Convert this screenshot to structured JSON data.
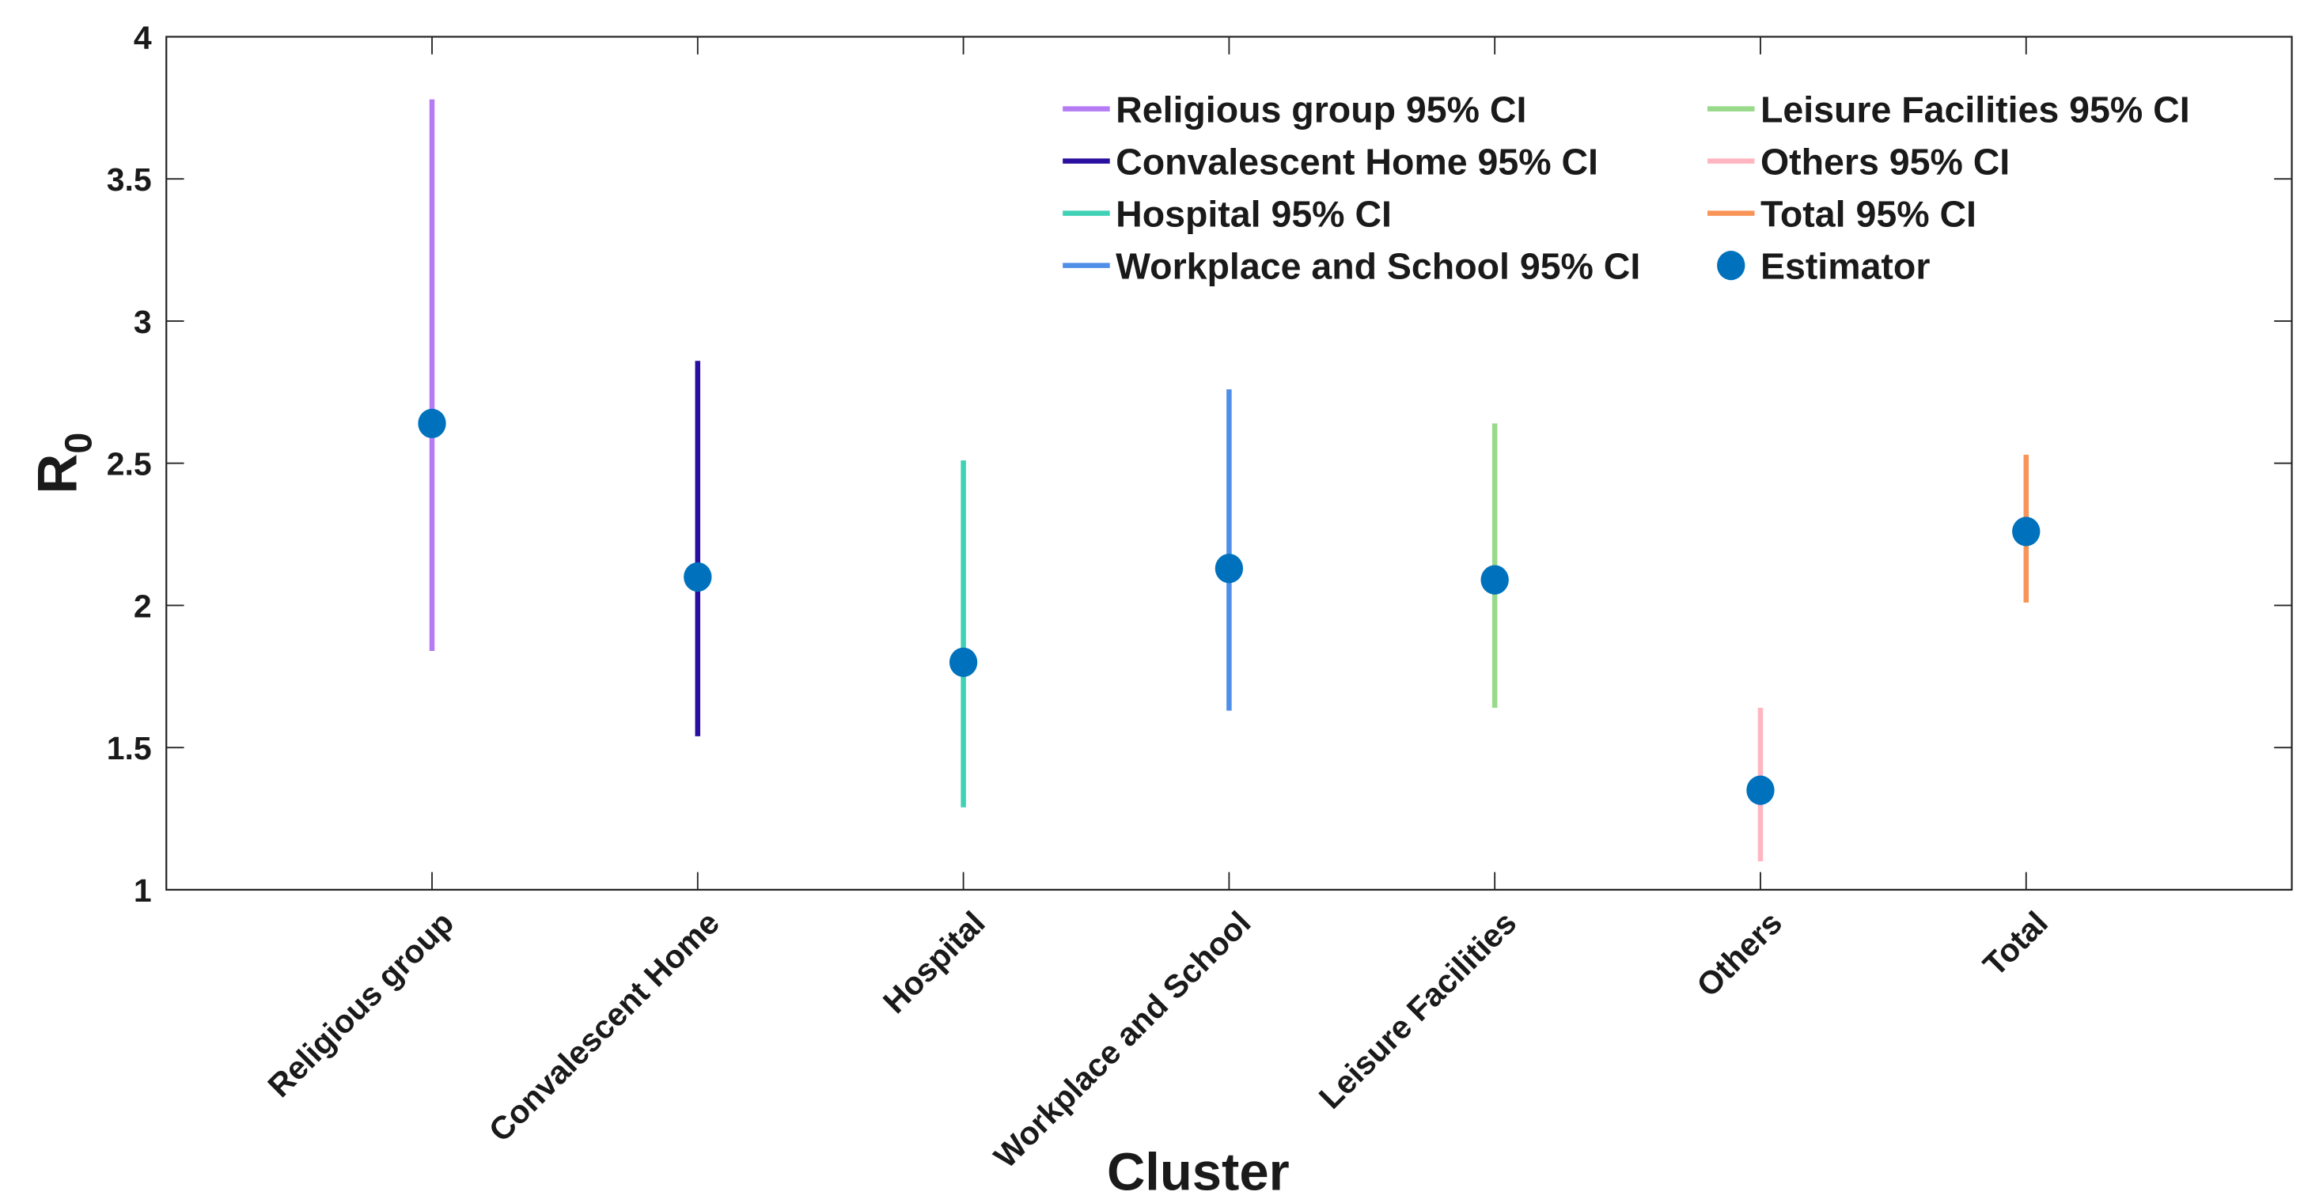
{
  "chart_data": {
    "type": "scatter",
    "subtype": "point-estimate-with-confidence-intervals",
    "title": "",
    "xlabel": "Cluster",
    "ylabel": "R",
    "ylabel_subscript": "0",
    "xlim": [
      0,
      8
    ],
    "ylim": [
      1,
      4
    ],
    "yticks": [
      1,
      1.5,
      2,
      2.5,
      3,
      3.5,
      4
    ],
    "ytick_labels": [
      "1",
      "1.5",
      "2",
      "2.5",
      "3",
      "3.5",
      "4"
    ],
    "grid": false,
    "legend_placement": "top-right",
    "categories": [
      "Religious group",
      "Convalescent Home",
      "Hospital",
      "Workplace and School",
      "Leisure Facilities",
      "Others",
      "Total"
    ],
    "series": [
      {
        "name": "Religious group 95% CI",
        "x": 1,
        "estimate": 2.64,
        "ci_low": 1.84,
        "ci_high": 3.78,
        "color": "#b57bf5"
      },
      {
        "name": "Convalescent Home 95% CI",
        "x": 2,
        "estimate": 2.1,
        "ci_low": 1.54,
        "ci_high": 2.86,
        "color": "#2a0ea0"
      },
      {
        "name": "Hospital 95% CI",
        "x": 3,
        "estimate": 1.8,
        "ci_low": 1.29,
        "ci_high": 2.51,
        "color": "#3fd1b5"
      },
      {
        "name": "Workplace and School 95% CI",
        "x": 4,
        "estimate": 2.13,
        "ci_low": 1.63,
        "ci_high": 2.76,
        "color": "#4f8fe8"
      },
      {
        "name": "Leisure Facilities 95% CI",
        "x": 5,
        "estimate": 2.09,
        "ci_low": 1.64,
        "ci_high": 2.64,
        "color": "#98d98a"
      },
      {
        "name": "Others 95% CI",
        "x": 6,
        "estimate": 1.35,
        "ci_low": 1.1,
        "ci_high": 1.64,
        "color": "#ffb6c1"
      },
      {
        "name": "Total 95% CI",
        "x": 7,
        "estimate": 2.26,
        "ci_low": 2.01,
        "ci_high": 2.53,
        "color": "#f99459"
      }
    ],
    "estimator": {
      "name": "Estimator",
      "color": "#0072bd"
    }
  }
}
